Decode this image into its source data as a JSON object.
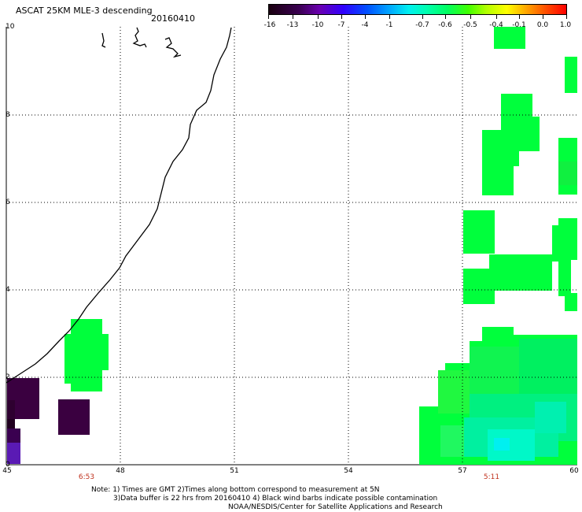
{
  "title": "ASCAT 25KM MLE-3 descending",
  "date": "20160410",
  "colorbar": {
    "labels": [
      "-16",
      "-13",
      "-10",
      "-7",
      "-4",
      "-1",
      "-0.7",
      "-0.6",
      "-0.5",
      "-0.4",
      "-0.1",
      "0.0",
      "1.0"
    ]
  },
  "axes": {
    "x_ticks": [
      "45",
      "48",
      "51",
      "54",
      "57",
      "60"
    ],
    "y_ticks": [
      "0",
      "2",
      "4",
      "6",
      "8",
      "10"
    ]
  },
  "times": [
    "6:53",
    "5:11"
  ],
  "notes": {
    "line1": "Note: 1) Times are GMT 2)Times along bottom correspond to measurement at 5N",
    "line2": "3)Data buffer is 22 hrs from 20160410 4) Black wind barbs indicate possible contamination",
    "line3": "NOAA/NESDIS/Center for Satellite Applications and Research"
  },
  "colors": {
    "green": "#00ff3c",
    "purple_dark": "#3a0040",
    "blue_purple": "#5a1ab4",
    "time_red": "#c0321e"
  }
}
